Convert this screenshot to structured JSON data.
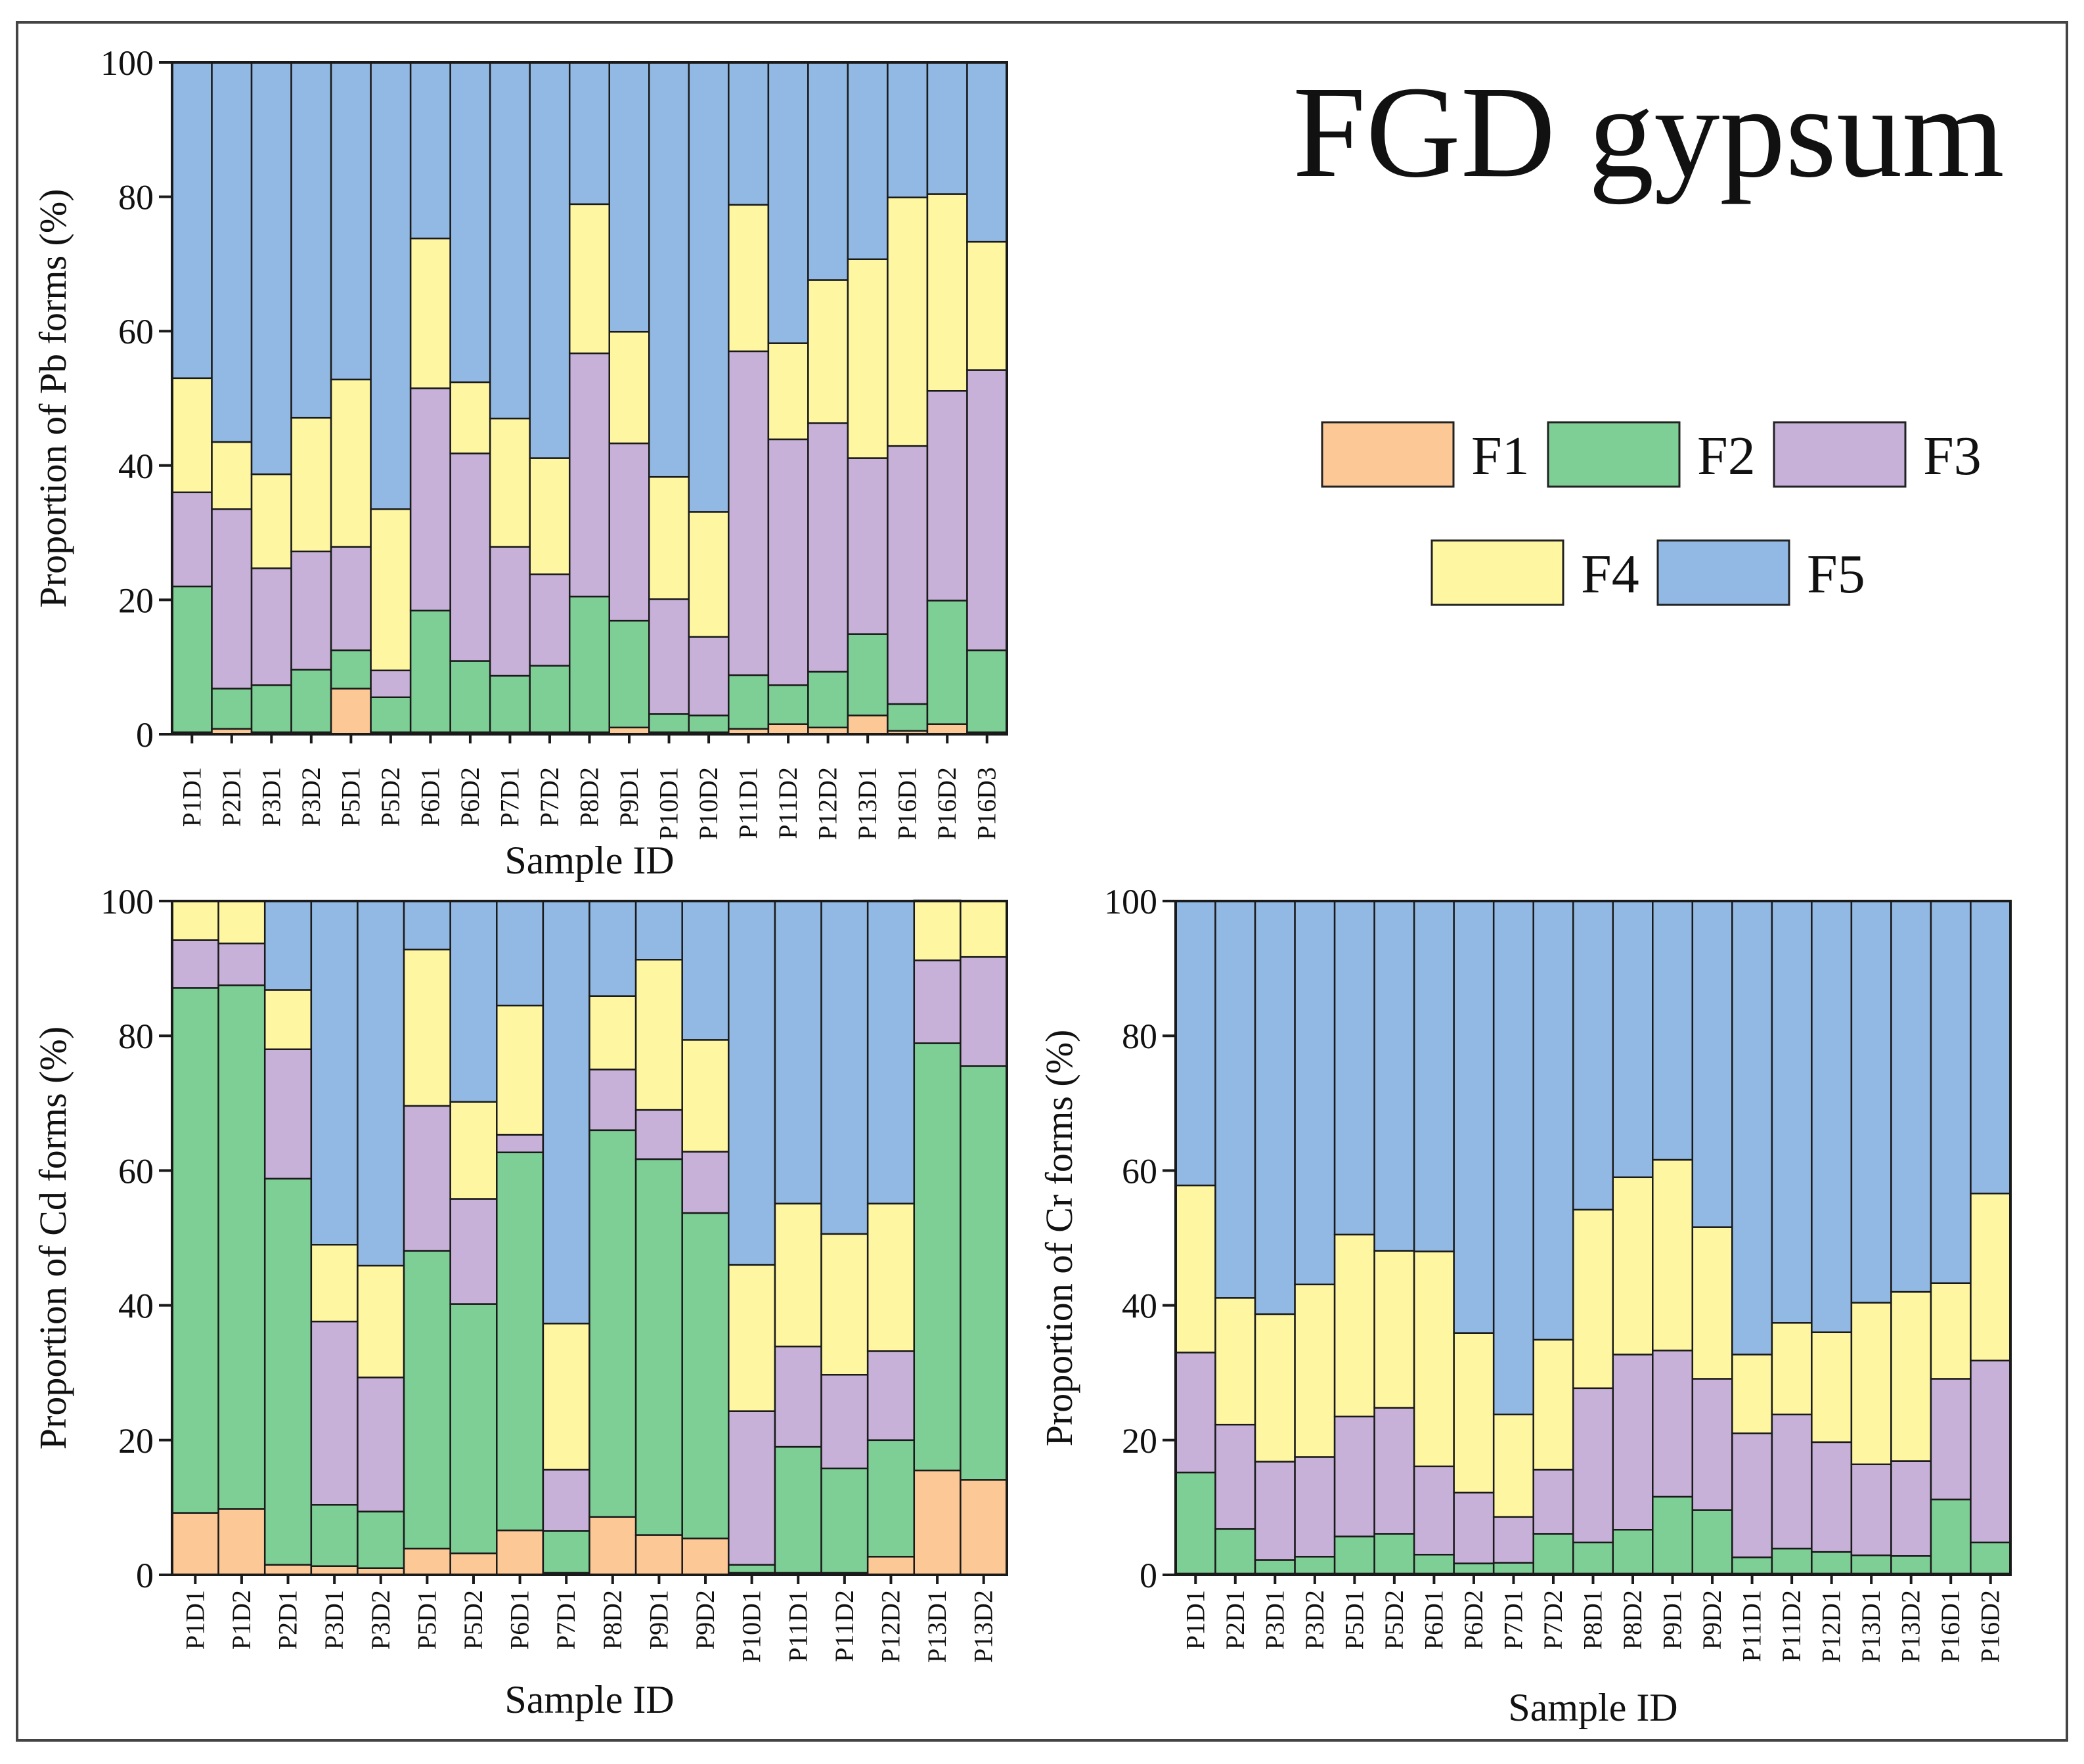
{
  "figure": {
    "title": "FGD gypsum",
    "legend_labels": [
      "F1",
      "F2",
      "F3",
      "F4",
      "F5"
    ],
    "series_colors": [
      "#FCC896",
      "#7ECF96",
      "#C7B1D8",
      "#FEF6A1",
      "#92B9E3"
    ]
  },
  "chart_data": [
    {
      "type": "bar",
      "stacked": true,
      "title": "",
      "xlabel": "Sample ID",
      "ylabel": "Proportion of Pb forms (%)",
      "ylim": [
        0,
        100
      ],
      "yticks": [
        0,
        20,
        40,
        60,
        80,
        100
      ],
      "categories": [
        "P1D1",
        "P2D1",
        "P3D1",
        "P3D2",
        "P5D1",
        "P5D2",
        "P6D1",
        "P6D2",
        "P7D1",
        "P7D2",
        "P8D2",
        "P9D1",
        "P10D1",
        "P10D2",
        "P11D1",
        "P11D2",
        "P12D2",
        "P13D1",
        "P16D1",
        "P16D2",
        "P16D3"
      ],
      "series": [
        {
          "name": "F1",
          "values": [
            0.3,
            0.8,
            0.3,
            0.3,
            6.8,
            0.3,
            0.3,
            0.3,
            0.3,
            0.3,
            0.3,
            1.0,
            0.3,
            0.3,
            0.8,
            1.5,
            1.0,
            2.8,
            0.5,
            1.5,
            0.3
          ]
        },
        {
          "name": "F2",
          "values": [
            21.7,
            6.0,
            7.0,
            9.3,
            5.7,
            5.2,
            18.1,
            10.6,
            8.4,
            9.9,
            20.2,
            15.9,
            2.7,
            2.5,
            8.0,
            5.8,
            8.3,
            12.1,
            4.0,
            18.4,
            12.2
          ]
        },
        {
          "name": "F3",
          "values": [
            14.0,
            26.7,
            17.4,
            17.6,
            15.4,
            4.0,
            33.1,
            30.9,
            19.2,
            13.6,
            36.2,
            26.4,
            17.1,
            11.7,
            48.2,
            36.6,
            37.0,
            26.2,
            38.4,
            31.2,
            41.7
          ]
        },
        {
          "name": "F4",
          "values": [
            17.0,
            10.0,
            14.0,
            19.9,
            24.9,
            24.0,
            22.3,
            10.6,
            19.1,
            17.3,
            22.2,
            16.6,
            18.2,
            18.6,
            21.8,
            14.3,
            21.3,
            29.6,
            37.0,
            29.3,
            19.1
          ]
        },
        {
          "name": "F5",
          "values": [
            47.0,
            56.5,
            61.3,
            52.9,
            47.2,
            66.5,
            26.2,
            47.6,
            53.0,
            58.9,
            21.1,
            40.1,
            61.7,
            66.9,
            21.2,
            41.8,
            32.4,
            29.3,
            20.1,
            19.6,
            26.7
          ]
        }
      ]
    },
    {
      "type": "bar",
      "stacked": true,
      "title": "",
      "xlabel": "Sample ID",
      "ylabel": "Proportion of Cd forms (%)",
      "ylim": [
        0,
        100
      ],
      "yticks": [
        0,
        20,
        40,
        60,
        80,
        100
      ],
      "categories": [
        "P1D1",
        "P1D2",
        "P2D1",
        "P3D1",
        "P3D2",
        "P5D1",
        "P5D2",
        "P6D1",
        "P7D1",
        "P8D2",
        "P9D1",
        "P9D2",
        "P10D1",
        "P11D1",
        "P11D2",
        "P12D2",
        "P13D1",
        "P13D2"
      ],
      "series": [
        {
          "name": "F1",
          "values": [
            9.2,
            9.8,
            1.5,
            1.3,
            1.0,
            3.9,
            3.2,
            6.6,
            0.3,
            8.6,
            5.9,
            5.4,
            0.3,
            0.3,
            0.3,
            2.7,
            15.5,
            14.1
          ]
        },
        {
          "name": "F2",
          "values": [
            77.9,
            77.7,
            57.3,
            9.1,
            8.4,
            44.2,
            37.0,
            56.1,
            6.2,
            57.4,
            55.8,
            48.3,
            1.2,
            18.7,
            15.5,
            17.3,
            63.4,
            61.4
          ]
        },
        {
          "name": "F3",
          "values": [
            7.1,
            6.2,
            19.2,
            27.2,
            19.9,
            21.5,
            15.6,
            2.6,
            9.1,
            9.0,
            7.3,
            9.1,
            22.8,
            14.9,
            13.9,
            13.2,
            12.3,
            16.2
          ]
        },
        {
          "name": "F4",
          "values": [
            5.8,
            6.3,
            8.8,
            11.4,
            16.6,
            23.2,
            14.4,
            19.2,
            21.7,
            10.9,
            22.3,
            16.6,
            21.7,
            21.2,
            20.9,
            21.9,
            8.9,
            8.3
          ]
        },
        {
          "name": "F5",
          "values": [
            0,
            0,
            13.2,
            51.0,
            54.1,
            7.2,
            29.8,
            15.5,
            62.7,
            14.1,
            8.7,
            20.6,
            54.0,
            44.9,
            49.4,
            44.9,
            0,
            0
          ]
        }
      ]
    },
    {
      "type": "bar",
      "stacked": true,
      "title": "",
      "xlabel": "Sample ID",
      "ylabel": "Proportion of Cr forms (%)",
      "ylim": [
        0,
        100
      ],
      "yticks": [
        0,
        20,
        40,
        60,
        80,
        100
      ],
      "categories": [
        "P1D1",
        "P2D1",
        "P3D1",
        "P3D2",
        "P5D1",
        "P5D2",
        "P6D1",
        "P6D2",
        "P7D1",
        "P7D2",
        "P8D1",
        "P8D2",
        "P9D1",
        "P9D2",
        "P11D1",
        "P11D2",
        "P12D1",
        "P13D1",
        "P13D2",
        "P16D1",
        "P16D2"
      ],
      "series": [
        {
          "name": "F1",
          "values": [
            0.2,
            0.2,
            0.2,
            0.2,
            0.2,
            0.2,
            0.2,
            0.2,
            0.2,
            0.2,
            0.2,
            0.2,
            0.2,
            0.2,
            0.2,
            0.2,
            0.2,
            0.2,
            0.2,
            0.2,
            0.2
          ]
        },
        {
          "name": "F2",
          "values": [
            15.0,
            6.6,
            2.0,
            2.5,
            5.5,
            5.9,
            2.8,
            1.5,
            1.6,
            5.9,
            4.6,
            6.5,
            11.4,
            9.4,
            2.4,
            3.7,
            3.2,
            2.7,
            2.6,
            11.0,
            4.6
          ]
        },
        {
          "name": "F3",
          "values": [
            17.8,
            15.5,
            14.6,
            14.8,
            17.8,
            18.7,
            13.1,
            10.5,
            6.8,
            9.5,
            22.9,
            26.0,
            21.7,
            19.5,
            18.4,
            19.9,
            16.3,
            13.5,
            14.1,
            17.9,
            27.0
          ]
        },
        {
          "name": "F4",
          "values": [
            24.8,
            18.8,
            21.9,
            25.6,
            27.0,
            23.3,
            31.9,
            23.7,
            15.2,
            19.3,
            26.5,
            26.3,
            28.3,
            22.5,
            11.7,
            13.6,
            16.3,
            24.0,
            25.1,
            14.2,
            24.8
          ]
        },
        {
          "name": "F5",
          "values": [
            42.2,
            58.9,
            61.3,
            56.9,
            49.5,
            51.9,
            52.0,
            64.1,
            76.2,
            65.1,
            45.8,
            41.0,
            38.4,
            48.4,
            67.3,
            62.6,
            64.0,
            59.6,
            58.0,
            56.7,
            43.4
          ]
        }
      ]
    }
  ]
}
